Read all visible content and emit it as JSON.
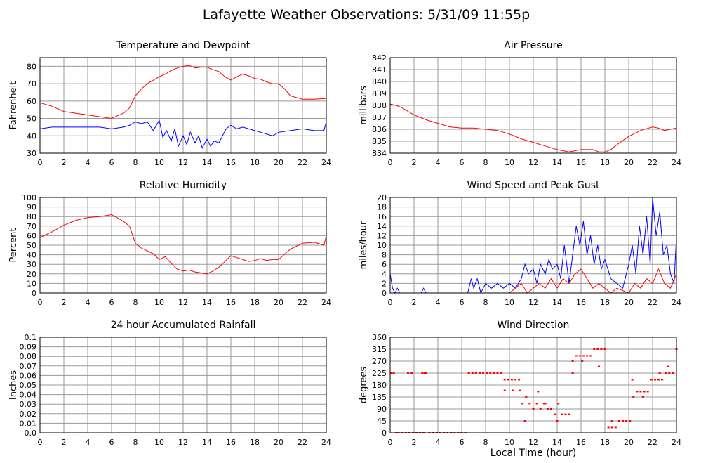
{
  "page": {
    "title": "Lafayette Weather Observations: 5/31/09 11:55p"
  },
  "shared": {
    "xlabel": "Local Time (hour)"
  },
  "colors": {
    "red": "#ff0000",
    "blue": "#0000ff",
    "grid": "#999999",
    "frame": "#000000"
  },
  "chart_data": [
    {
      "type": "line",
      "title": "Temperature and Dewpoint",
      "ylabel": "Fahrenheit",
      "xlim": [
        0,
        24
      ],
      "ylim": [
        30,
        85
      ],
      "xticks": [
        0,
        2,
        4,
        6,
        8,
        10,
        12,
        14,
        16,
        18,
        20,
        22,
        24
      ],
      "yticks": [
        30,
        40,
        50,
        60,
        70,
        80
      ],
      "grid": true,
      "series": [
        {
          "color": "#ff0000",
          "x": [
            0,
            1,
            2,
            3,
            4,
            5,
            6,
            7,
            7.5,
            8,
            8.5,
            9,
            9.5,
            10,
            10.5,
            11,
            11.5,
            12,
            12.5,
            13,
            13.5,
            14,
            14.5,
            15,
            15.5,
            16,
            16.5,
            17,
            17.5,
            18,
            18.5,
            19,
            19.5,
            20,
            20.5,
            21,
            22,
            23,
            24
          ],
          "y": [
            59,
            57,
            54,
            53,
            52,
            51,
            50,
            53,
            56,
            63,
            67,
            70,
            72,
            74,
            75.5,
            77.5,
            79,
            80,
            80.5,
            79,
            79.5,
            79.5,
            78,
            77,
            74,
            72,
            74,
            75.5,
            74.5,
            73,
            72.5,
            71,
            70,
            70,
            67,
            63,
            61,
            61,
            61.5
          ]
        },
        {
          "color": "#0000ff",
          "x": [
            0,
            1,
            2,
            3,
            4,
            5,
            6,
            7,
            7.5,
            8,
            8.5,
            9,
            9.5,
            10,
            10.3,
            10.6,
            11,
            11.3,
            11.6,
            12,
            12.3,
            12.6,
            13,
            13.3,
            13.6,
            14,
            14.3,
            14.6,
            15,
            15.3,
            15.6,
            16,
            16.5,
            17,
            17.5,
            18,
            18.5,
            19,
            19.5,
            20,
            21,
            22,
            23,
            23.8,
            24
          ],
          "y": [
            44,
            45,
            45,
            45,
            45,
            45,
            44,
            45,
            46,
            48,
            47,
            48,
            43,
            49,
            39,
            43,
            37,
            44,
            34,
            40,
            35,
            42,
            36,
            40,
            33,
            38,
            34,
            37,
            36,
            40,
            44,
            46,
            44,
            45,
            44,
            43,
            42,
            41,
            40,
            42,
            43,
            44,
            43,
            43,
            48
          ]
        }
      ]
    },
    {
      "type": "line",
      "title": "Air Pressure",
      "ylabel": "millibars",
      "xlim": [
        0,
        24
      ],
      "ylim": [
        834,
        842
      ],
      "xticks": [
        0,
        2,
        4,
        6,
        8,
        10,
        12,
        14,
        16,
        18,
        20,
        22,
        24
      ],
      "yticks": [
        834,
        835,
        836,
        837,
        838,
        839,
        840,
        841,
        842
      ],
      "grid": true,
      "series": [
        {
          "color": "#ff0000",
          "x": [
            0,
            0.5,
            1,
            1.5,
            2,
            3,
            4,
            5,
            6,
            7,
            8,
            9,
            10,
            11,
            12,
            13,
            14,
            15,
            16,
            17,
            17.5,
            18,
            18.5,
            19,
            20,
            21,
            22,
            22.5,
            23,
            24
          ],
          "y": [
            838.1,
            838.0,
            837.8,
            837.5,
            837.2,
            836.8,
            836.5,
            836.2,
            836.1,
            836.1,
            836.0,
            835.9,
            835.6,
            835.2,
            834.9,
            834.6,
            834.3,
            834.1,
            834.3,
            834.3,
            834.1,
            834.1,
            834.3,
            834.7,
            835.4,
            835.9,
            836.2,
            836.1,
            835.9,
            836.1
          ]
        }
      ]
    },
    {
      "type": "line",
      "title": "Relative Humidity",
      "ylabel": "Percent",
      "xlim": [
        0,
        24
      ],
      "ylim": [
        0,
        100
      ],
      "xticks": [
        0,
        2,
        4,
        6,
        8,
        10,
        12,
        14,
        16,
        18,
        20,
        22,
        24
      ],
      "yticks": [
        0,
        10,
        20,
        30,
        40,
        50,
        60,
        70,
        80,
        90,
        100
      ],
      "grid": true,
      "series": [
        {
          "color": "#ff0000",
          "x": [
            0,
            1,
            2,
            3,
            4,
            5,
            6,
            7,
            7.5,
            8,
            8.5,
            9,
            9.5,
            10,
            10.5,
            11,
            11.5,
            12,
            12.5,
            13,
            13.5,
            14,
            14.5,
            15,
            15.5,
            16,
            16.5,
            17,
            17.5,
            18,
            18.5,
            19,
            19.5,
            20,
            21,
            22,
            23,
            23.8,
            24
          ],
          "y": [
            58,
            64,
            71,
            76,
            79,
            80,
            82,
            75,
            70,
            52,
            47,
            44,
            41,
            35,
            38,
            31,
            25,
            23,
            24,
            22,
            21,
            20,
            23,
            27,
            33,
            39,
            37,
            35,
            33,
            34,
            36,
            34,
            35,
            35,
            46,
            52,
            53,
            50,
            60
          ]
        }
      ]
    },
    {
      "type": "line",
      "title": "Wind Speed and Peak Gust",
      "ylabel": "miles/hour",
      "xlim": [
        0,
        24
      ],
      "ylim": [
        0,
        20
      ],
      "xticks": [
        0,
        2,
        4,
        6,
        8,
        10,
        12,
        14,
        16,
        18,
        20,
        22,
        24
      ],
      "yticks": [
        0,
        2,
        4,
        6,
        8,
        10,
        12,
        14,
        16,
        18,
        20
      ],
      "grid": true,
      "series": [
        {
          "color": "#0000ff",
          "x": [
            0,
            0.2,
            0.4,
            0.6,
            0.8,
            1,
            2.6,
            2.8,
            3,
            6.5,
            6.8,
            7,
            7.3,
            7.6,
            8,
            8.5,
            9,
            9.5,
            10,
            10.5,
            11,
            11.3,
            11.6,
            12,
            12.3,
            12.6,
            13,
            13.3,
            13.6,
            14,
            14.3,
            14.6,
            15,
            15.3,
            15.6,
            15.9,
            16.2,
            16.5,
            16.8,
            17.1,
            17.4,
            17.7,
            18,
            18.5,
            19,
            19.5,
            20,
            20.3,
            20.6,
            20.9,
            21.2,
            21.5,
            21.8,
            22,
            22.3,
            22.6,
            22.9,
            23.2,
            23.5,
            23.8,
            24
          ],
          "y": [
            4,
            1,
            0,
            1,
            0,
            0,
            0,
            1,
            0,
            0,
            3,
            1,
            3,
            0,
            2,
            1,
            2,
            1,
            2,
            1,
            3,
            6,
            4,
            5,
            2,
            6,
            4,
            7,
            5,
            6,
            3,
            10,
            2,
            8,
            14,
            10,
            15,
            8,
            12,
            6,
            10,
            5,
            7,
            3,
            2,
            1,
            6,
            10,
            4,
            14,
            8,
            16,
            6,
            20,
            12,
            17,
            8,
            10,
            4,
            2,
            12
          ]
        },
        {
          "color": "#ff0000",
          "x": [
            0,
            10,
            10.5,
            11,
            11.5,
            12,
            12.5,
            13,
            13.5,
            14,
            14.5,
            15,
            15.5,
            16,
            16.5,
            17,
            17.5,
            18,
            18.5,
            19,
            20,
            20.5,
            21,
            21.5,
            22,
            22.5,
            23,
            23.5,
            24
          ],
          "y": [
            0,
            0,
            1,
            2,
            0,
            1,
            2,
            1,
            3,
            1,
            3,
            2,
            4,
            5,
            3,
            1,
            2,
            1,
            0,
            1,
            0,
            2,
            1,
            3,
            2,
            5,
            2,
            1,
            4
          ]
        }
      ]
    },
    {
      "type": "line",
      "title": "24 hour Accumulated Rainfall",
      "ylabel": "Inches",
      "xlim": [
        0,
        24
      ],
      "ylim": [
        0,
        0.1
      ],
      "xticks": [
        0,
        2,
        4,
        6,
        8,
        10,
        12,
        14,
        16,
        18,
        20,
        22,
        24
      ],
      "yticks": [
        0.0,
        0.01,
        0.02,
        0.03,
        0.04,
        0.05,
        0.06,
        0.07,
        0.08,
        0.09,
        0.1
      ],
      "ytick_labels": [
        "0.0",
        "0.01",
        "0.02",
        "0.03",
        "0.04",
        "0.05",
        "0.06",
        "0.07",
        "0.08",
        "0.09",
        "0.1"
      ],
      "grid": true,
      "series": [
        {
          "color": "#ff0000",
          "x": [
            0,
            24
          ],
          "y": [
            0,
            0
          ]
        }
      ]
    },
    {
      "type": "scatter",
      "title": "Wind Direction",
      "ylabel": "degrees",
      "xlabel": "Local Time (hour)",
      "xlim": [
        0,
        24
      ],
      "ylim": [
        0,
        360
      ],
      "xticks": [
        0,
        2,
        4,
        6,
        8,
        10,
        12,
        14,
        16,
        18,
        20,
        22,
        24
      ],
      "yticks": [
        0,
        45,
        90,
        135,
        180,
        225,
        270,
        315,
        360
      ],
      "grid": true,
      "series": [
        {
          "color": "#ff0000",
          "x": [
            0.1,
            0.3,
            0.5,
            0.7,
            1.0,
            1.3,
            1.6,
            1.9,
            2.2,
            2.5,
            2.8,
            3.0,
            3.3,
            3.6,
            3.9,
            4.2,
            4.5,
            4.8,
            5.1,
            5.4,
            5.7,
            6.0,
            6.3,
            6.6,
            6.9,
            7.2,
            7.5,
            7.8,
            8.1,
            8.4,
            8.7,
            9.0,
            9.3,
            9.6,
            9.9,
            10.2,
            10.5,
            10.8,
            11.1,
            11.4,
            11.7,
            12.0,
            12.3,
            12.6,
            12.9,
            13.2,
            13.5,
            13.8,
            14.1,
            14.4,
            14.7,
            15.0,
            15.3,
            15.6,
            15.9,
            16.2,
            16.5,
            16.8,
            17.1,
            17.4,
            17.7,
            18.0,
            18.3,
            18.6,
            18.9,
            19.2,
            19.5,
            19.8,
            20.1,
            20.4,
            20.7,
            21.0,
            21.3,
            21.6,
            21.9,
            22.2,
            22.5,
            22.8,
            23.1,
            23.4,
            23.7,
            24.0,
            1.5,
            1.8,
            2.7,
            2.9,
            9.6,
            10.3,
            10.9,
            11.3,
            12.4,
            13.0,
            14.0,
            15.3,
            16.1,
            17.5,
            18.6,
            20.3,
            21.2,
            22.6,
            23.3
          ],
          "y": [
            225,
            225,
            0,
            0,
            0,
            0,
            0,
            0,
            0,
            0,
            0,
            225,
            0,
            0,
            0,
            0,
            0,
            0,
            0,
            0,
            0,
            0,
            0,
            225,
            225,
            225,
            225,
            225,
            225,
            225,
            225,
            225,
            225,
            200,
            200,
            200,
            200,
            200,
            110,
            135,
            110,
            90,
            110,
            90,
            110,
            90,
            90,
            70,
            110,
            70,
            70,
            70,
            225,
            290,
            290,
            290,
            290,
            290,
            315,
            315,
            315,
            315,
            20,
            20,
            20,
            45,
            45,
            45,
            45,
            135,
            155,
            155,
            155,
            155,
            200,
            200,
            200,
            200,
            225,
            225,
            225,
            315,
            225,
            225,
            225,
            225,
            160,
            160,
            160,
            45,
            155,
            110,
            45,
            270,
            270,
            250,
            45,
            200,
            135,
            225,
            250
          ]
        }
      ]
    }
  ]
}
